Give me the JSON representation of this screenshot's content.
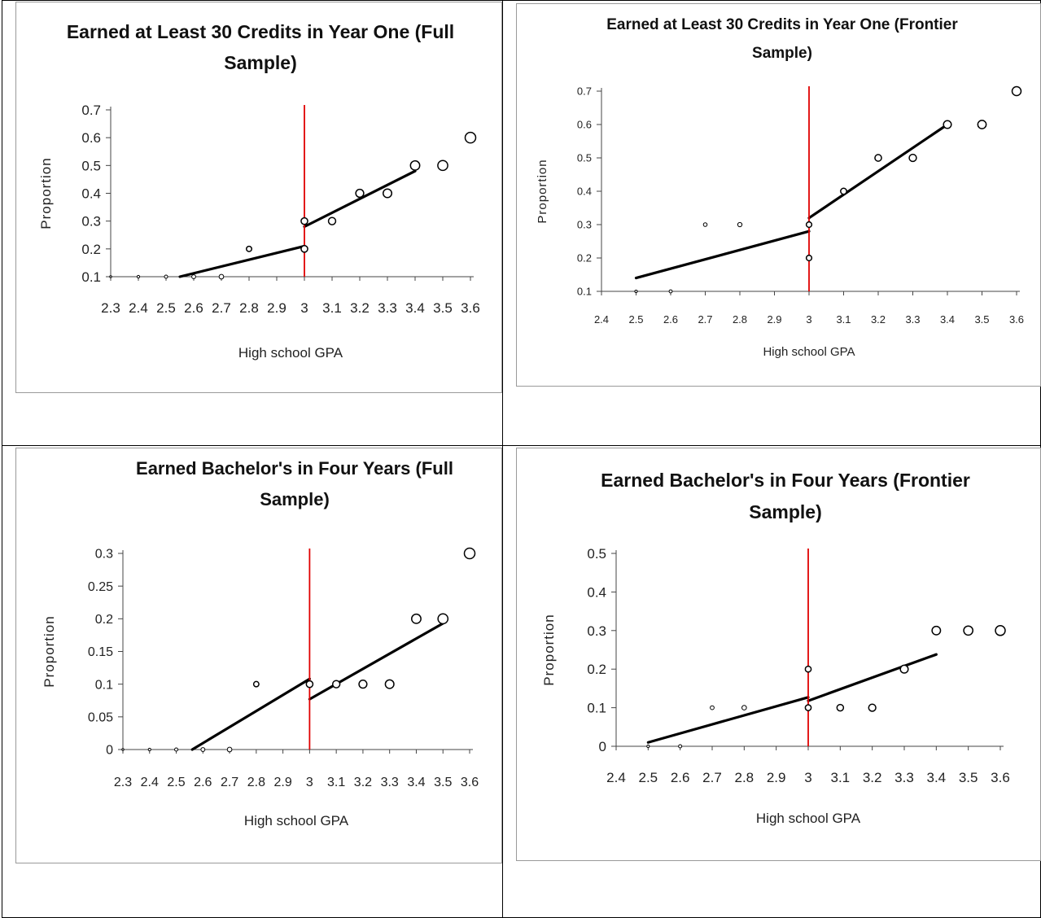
{
  "chart_data": [
    {
      "type": "scatter",
      "title": "Earned at Least 30 Credits in Year One (Full Sample)",
      "title_lines": [
        "Earned at Least 30 Credits in Year One (Full",
        "Sample)"
      ],
      "xlabel": "High school GPA",
      "ylabel": "Proportion",
      "x_ticks": [
        "2.3",
        "2.4",
        "2.5",
        "2.6",
        "2.7",
        "2.8",
        "2.9",
        "3",
        "3.1",
        "3.2",
        "3.3",
        "3.4",
        "3.5",
        "3.6"
      ],
      "y_ticks": [
        "0.1",
        "0.2",
        "0.3",
        "0.4",
        "0.5",
        "0.6",
        "0.7"
      ],
      "xlim": [
        2.3,
        3.6
      ],
      "ylim": [
        0.1,
        0.7
      ],
      "cutoff": 3.0,
      "points": [
        {
          "x": 2.3,
          "y": 0.1
        },
        {
          "x": 2.4,
          "y": 0.1
        },
        {
          "x": 2.5,
          "y": 0.1
        },
        {
          "x": 2.6,
          "y": 0.1
        },
        {
          "x": 2.7,
          "y": 0.1
        },
        {
          "x": 2.8,
          "y": 0.2
        },
        {
          "x": 3.0,
          "y": 0.2
        },
        {
          "x": 3.0,
          "y": 0.3
        },
        {
          "x": 3.1,
          "y": 0.3
        },
        {
          "x": 3.2,
          "y": 0.4
        },
        {
          "x": 3.3,
          "y": 0.4
        },
        {
          "x": 3.4,
          "y": 0.5
        },
        {
          "x": 3.5,
          "y": 0.5
        },
        {
          "x": 3.6,
          "y": 0.6
        }
      ],
      "fit_lines": [
        {
          "x": [
            2.55,
            3.0
          ],
          "y": [
            0.1,
            0.21
          ]
        },
        {
          "x": [
            3.0,
            3.4
          ],
          "y": [
            0.28,
            0.48
          ]
        }
      ],
      "colors": {
        "points": "#000000",
        "fit": "#000000",
        "cutoff": "#e00000"
      }
    },
    {
      "type": "scatter",
      "title": "Earned at Least 30 Credits in Year One (Frontier Sample)",
      "title_lines": [
        "Earned at Least 30 Credits in Year One (Frontier",
        "Sample)"
      ],
      "xlabel": "High school GPA",
      "ylabel": "Proportion",
      "x_ticks": [
        "2.4",
        "2.5",
        "2.6",
        "2.7",
        "2.8",
        "2.9",
        "3",
        "3.1",
        "3.2",
        "3.3",
        "3.4",
        "3.5",
        "3.6"
      ],
      "y_ticks": [
        "0.1",
        "0.2",
        "0.3",
        "0.4",
        "0.5",
        "0.6",
        "0.7"
      ],
      "xlim": [
        2.4,
        3.6
      ],
      "ylim": [
        0.1,
        0.7
      ],
      "cutoff": 3.0,
      "points": [
        {
          "x": 2.5,
          "y": 0.1
        },
        {
          "x": 2.6,
          "y": 0.1
        },
        {
          "x": 2.7,
          "y": 0.3
        },
        {
          "x": 2.8,
          "y": 0.3
        },
        {
          "x": 3.0,
          "y": 0.2
        },
        {
          "x": 3.0,
          "y": 0.3
        },
        {
          "x": 3.1,
          "y": 0.4
        },
        {
          "x": 3.2,
          "y": 0.5
        },
        {
          "x": 3.3,
          "y": 0.5
        },
        {
          "x": 3.4,
          "y": 0.6
        },
        {
          "x": 3.5,
          "y": 0.6
        },
        {
          "x": 3.6,
          "y": 0.7
        }
      ],
      "fit_lines": [
        {
          "x": [
            2.5,
            3.0
          ],
          "y": [
            0.14,
            0.28
          ]
        },
        {
          "x": [
            3.0,
            3.4
          ],
          "y": [
            0.32,
            0.6
          ]
        }
      ],
      "colors": {
        "points": "#000000",
        "fit": "#000000",
        "cutoff": "#e00000"
      }
    },
    {
      "type": "scatter",
      "title": "Earned Bachelor's in Four Years (Full Sample)",
      "title_lines": [
        "Earned Bachelor's in Four Years (Full",
        "Sample)"
      ],
      "xlabel": "High school GPA",
      "ylabel": "Proportion",
      "x_ticks": [
        "2.3",
        "2.4",
        "2.5",
        "2.6",
        "2.7",
        "2.8",
        "2.9",
        "3",
        "3.1",
        "3.2",
        "3.3",
        "3.4",
        "3.5",
        "3.6"
      ],
      "y_ticks": [
        "0",
        "0.05",
        "0.1",
        "0.15",
        "0.2",
        "0.25",
        "0.3"
      ],
      "xlim": [
        2.3,
        3.6
      ],
      "ylim": [
        0,
        0.3
      ],
      "cutoff": 3.0,
      "points": [
        {
          "x": 2.3,
          "y": 0
        },
        {
          "x": 2.4,
          "y": 0
        },
        {
          "x": 2.5,
          "y": 0
        },
        {
          "x": 2.6,
          "y": 0
        },
        {
          "x": 2.7,
          "y": 0
        },
        {
          "x": 2.8,
          "y": 0.1
        },
        {
          "x": 3.0,
          "y": 0.1
        },
        {
          "x": 3.1,
          "y": 0.1
        },
        {
          "x": 3.2,
          "y": 0.1
        },
        {
          "x": 3.3,
          "y": 0.1
        },
        {
          "x": 3.4,
          "y": 0.2
        },
        {
          "x": 3.5,
          "y": 0.2
        },
        {
          "x": 3.6,
          "y": 0.3
        }
      ],
      "fit_lines": [
        {
          "x": [
            2.56,
            3.0
          ],
          "y": [
            0,
            0.108
          ]
        },
        {
          "x": [
            3.0,
            3.5
          ],
          "y": [
            0.077,
            0.193
          ]
        }
      ],
      "colors": {
        "points": "#000000",
        "fit": "#000000",
        "cutoff": "#e00000"
      }
    },
    {
      "type": "scatter",
      "title": "Earned Bachelor's in Four Years (Frontier Sample)",
      "title_lines": [
        "Earned Bachelor's in Four Years (Frontier",
        "Sample)"
      ],
      "xlabel": "High school GPA",
      "ylabel": "Proportion",
      "x_ticks": [
        "2.4",
        "2.5",
        "2.6",
        "2.7",
        "2.8",
        "2.9",
        "3",
        "3.1",
        "3.2",
        "3.3",
        "3.4",
        "3.5",
        "3.6"
      ],
      "y_ticks": [
        "0",
        "0.1",
        "0.2",
        "0.3",
        "0.4",
        "0.5"
      ],
      "xlim": [
        2.4,
        3.6
      ],
      "ylim": [
        0,
        0.5
      ],
      "cutoff": 3.0,
      "points": [
        {
          "x": 2.5,
          "y": 0
        },
        {
          "x": 2.6,
          "y": 0
        },
        {
          "x": 2.7,
          "y": 0.1
        },
        {
          "x": 2.8,
          "y": 0.1
        },
        {
          "x": 3.0,
          "y": 0.1
        },
        {
          "x": 3.0,
          "y": 0.2
        },
        {
          "x": 3.1,
          "y": 0.1
        },
        {
          "x": 3.2,
          "y": 0.1
        },
        {
          "x": 3.3,
          "y": 0.2
        },
        {
          "x": 3.4,
          "y": 0.3
        },
        {
          "x": 3.5,
          "y": 0.3
        },
        {
          "x": 3.6,
          "y": 0.3
        }
      ],
      "fit_lines": [
        {
          "x": [
            2.5,
            3.0
          ],
          "y": [
            0.01,
            0.127
          ]
        },
        {
          "x": [
            3.0,
            3.4
          ],
          "y": [
            0.118,
            0.238
          ]
        }
      ],
      "colors": {
        "points": "#000000",
        "fit": "#000000",
        "cutoff": "#e00000"
      }
    }
  ]
}
